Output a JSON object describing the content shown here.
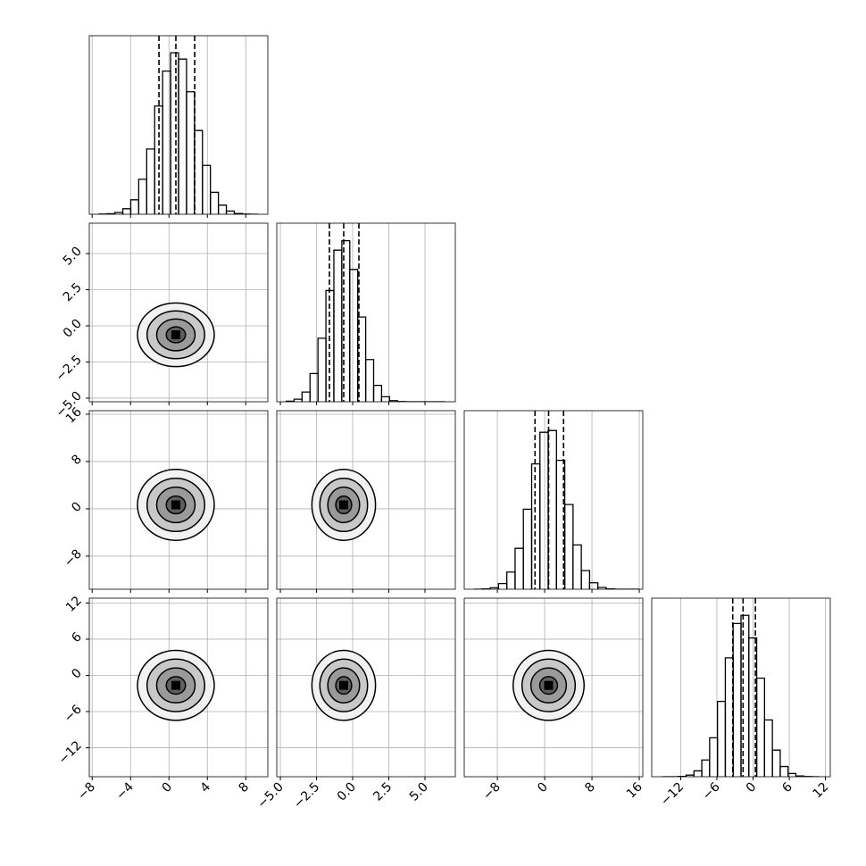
{
  "chart_data": {
    "type": "corner",
    "grid": true,
    "levels": [
      0.5,
      1,
      1.5,
      2
    ],
    "hist_ylim": [
      0,
      1100
    ],
    "parameters": [
      {
        "xlim": [
          -8.3,
          10.3
        ],
        "xticks": [
          {
            "value": -8,
            "label": "−8"
          },
          {
            "value": -4,
            "label": "−4"
          },
          {
            "value": 0,
            "label": "0"
          },
          {
            "value": 4,
            "label": "4"
          },
          {
            "value": 8,
            "label": "8"
          }
        ],
        "median": 0.72,
        "quantiles": [
          -1.04,
          2.68
        ],
        "sigma": 2,
        "bins": [
          -7.3,
          -6.47,
          -5.64,
          -4.81,
          -3.98,
          -3.15,
          -2.32,
          -1.49,
          -0.66,
          0.17,
          1.0,
          1.83,
          2.66,
          3.49,
          4.32,
          5.15,
          5.98,
          6.81,
          7.64,
          8.47,
          9.3
        ],
        "counts": [
          1,
          3,
          11,
          34,
          89,
          216,
          402,
          667,
          882,
          995,
          956,
          755,
          516,
          301,
          135,
          56,
          20,
          5,
          1,
          0
        ]
      },
      {
        "xlim": [
          -5.25,
          7.1
        ],
        "xticks": [
          {
            "value": -5,
            "label": "−5.0"
          },
          {
            "value": -2.5,
            "label": "−2.5"
          },
          {
            "value": 0,
            "label": "0.0"
          },
          {
            "value": 2.5,
            "label": "2.5"
          },
          {
            "value": 5,
            "label": "5.0"
          }
        ],
        "median": -0.62,
        "quantiles": [
          -1.61,
          0.43
        ],
        "sigma": 1.1,
        "bins": [
          -4.6,
          -4.05,
          -3.5,
          -2.95,
          -2.4,
          -1.85,
          -1.3,
          -0.75,
          -0.2,
          0.35,
          0.9,
          1.45,
          2.0,
          2.55,
          3.1,
          3.65,
          4.2,
          4.75,
          5.3,
          5.85,
          6.4
        ],
        "counts": [
          3,
          16,
          60,
          174,
          391,
          685,
          934,
          992,
          815,
          522,
          260,
          101,
          31,
          7,
          1,
          0,
          0,
          0,
          0,
          0
        ]
      },
      {
        "xlim": [
          -13.6,
          16.6
        ],
        "xticks": [
          {
            "value": -8,
            "label": "−8"
          },
          {
            "value": 0,
            "label": "0"
          },
          {
            "value": 8,
            "label": "8"
          },
          {
            "value": 16,
            "label": "16"
          }
        ],
        "median": 0.67,
        "quantiles": [
          -1.63,
          3.2
        ],
        "sigma": 3,
        "bins": [
          -12,
          -10.6,
          -9.2,
          -7.8,
          -6.4,
          -5,
          -3.6,
          -2.2,
          -0.8,
          0.6,
          2,
          3.4,
          4.8,
          6.2,
          7.6,
          9,
          10.4,
          11.8,
          13.2,
          14.6,
          16
        ],
        "counts": [
          0,
          2,
          9,
          35,
          106,
          252,
          493,
          772,
          967,
          978,
          794,
          522,
          273,
          115,
          40,
          11,
          2,
          0,
          0,
          0
        ]
      },
      {
        "xlim": [
          -16.8,
          12.8
        ],
        "xticks": [
          {
            "value": -12,
            "label": "−12"
          },
          {
            "value": -6,
            "label": "−6"
          },
          {
            "value": 0,
            "label": "0"
          },
          {
            "value": 6,
            "label": "6"
          },
          {
            "value": 12,
            "label": "12"
          }
        ],
        "median": -1.66,
        "quantiles": [
          -3.37,
          0.38
        ],
        "sigma": 2.9,
        "bins": [
          -15,
          -13.7,
          -12.4,
          -11.1,
          -9.8,
          -8.5,
          -7.2,
          -5.9,
          -4.6,
          -3.3,
          -2,
          -0.7,
          0.6,
          1.9,
          3.2,
          4.5,
          5.8,
          7.1,
          8.4,
          9.7,
          11
        ],
        "counts": [
          0,
          0,
          2,
          10,
          36,
          103,
          240,
          464,
          732,
          944,
          994,
          855,
          607,
          350,
          164,
          63,
          20,
          5,
          1,
          0
        ]
      }
    ]
  }
}
